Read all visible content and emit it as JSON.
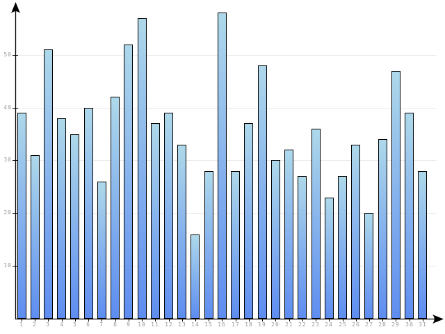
{
  "chart_data": {
    "type": "bar",
    "title": "",
    "xlabel": "",
    "ylabel": "",
    "categories": [
      "1",
      "2",
      "3",
      "4",
      "5",
      "6",
      "7",
      "8",
      "9",
      "10",
      "11",
      "12",
      "13",
      "14",
      "15",
      "16",
      "17",
      "18",
      "19",
      "20",
      "21",
      "22",
      "23",
      "24",
      "25",
      "26",
      "27",
      "28",
      "29",
      "30",
      "31"
    ],
    "values": [
      39,
      31,
      51,
      38,
      35,
      40,
      26,
      42,
      52,
      57,
      37,
      39,
      33,
      16,
      28,
      58,
      28,
      37,
      48,
      30,
      32,
      27,
      36,
      23,
      27,
      33,
      20,
      34,
      47,
      39,
      28
    ],
    "ylim": [
      0,
      60
    ],
    "y_ticks": [
      10,
      20,
      30,
      40,
      50
    ],
    "grid": true,
    "legend": false,
    "colors": {
      "bar_gradient_top": "#aed8ea",
      "bar_gradient_bottom": "#5e8df0",
      "bar_border": "#000000",
      "gridline": "#e9e9e9",
      "axis": "#000000",
      "tick_label": "#999999",
      "background": "#ffffff"
    }
  }
}
